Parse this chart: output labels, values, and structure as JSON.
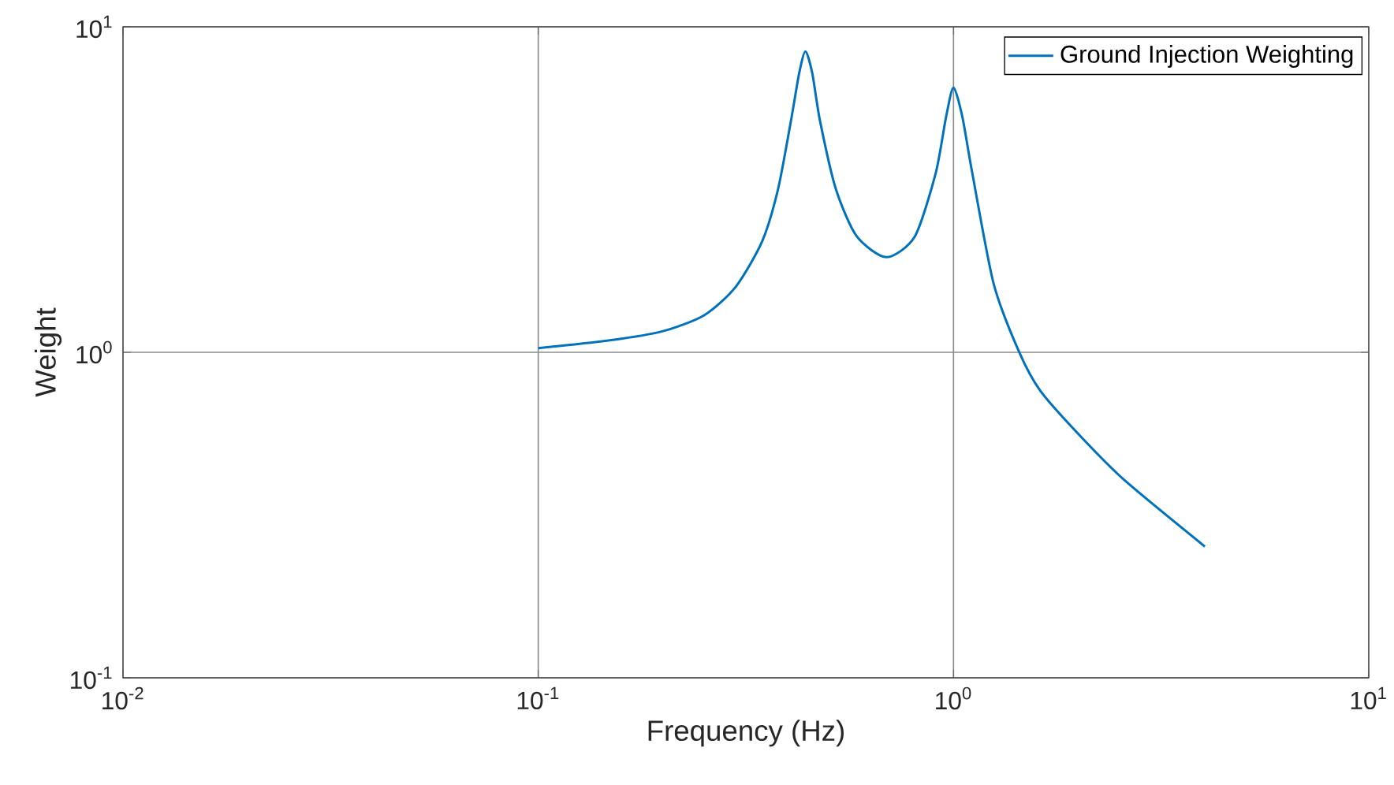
{
  "chart_data": {
    "type": "line",
    "xlabel": "Frequency (Hz)",
    "ylabel": "Weight",
    "log": "xy",
    "grid": true,
    "legend": "top right",
    "xlim": [
      0.01,
      10
    ],
    "ylim": [
      0.1,
      10
    ],
    "xticks": [
      {
        "value": 0.01,
        "label": "10$^{-2}$"
      },
      {
        "value": 0.1,
        "label": "10$^{-1}$"
      },
      {
        "value": 1,
        "label": "10$^{0}$"
      },
      {
        "value": 10,
        "label": "10$^{1}$"
      }
    ],
    "yticks": [
      {
        "value": 0.1,
        "label": "10$^{-1}$"
      },
      {
        "value": 1,
        "label": "10$^{0}$"
      },
      {
        "value": 10,
        "label": "10$^{1}$"
      }
    ],
    "series": [
      {
        "name": "Ground Injection Weighting",
        "color": "#0072bd",
        "x": [
          0.1,
          0.15,
          0.199,
          0.251,
          0.299,
          0.346,
          0.378,
          0.406,
          0.425,
          0.44,
          0.457,
          0.477,
          0.521,
          0.585,
          0.69,
          0.807,
          0.906,
          0.96,
          1.0,
          1.05,
          1.11,
          1.25,
          1.44,
          1.62,
          2.02,
          2.59,
          4.03
        ],
        "values": [
          1.03,
          1.09,
          1.16,
          1.3,
          1.59,
          2.19,
          3.17,
          5.14,
          7.2,
          8.4,
          7.2,
          5.14,
          3.17,
          2.27,
          1.96,
          2.27,
          3.55,
          5.3,
          6.5,
          5.3,
          3.55,
          1.62,
          1.0,
          0.76,
          0.553,
          0.403,
          0.253
        ]
      }
    ]
  }
}
